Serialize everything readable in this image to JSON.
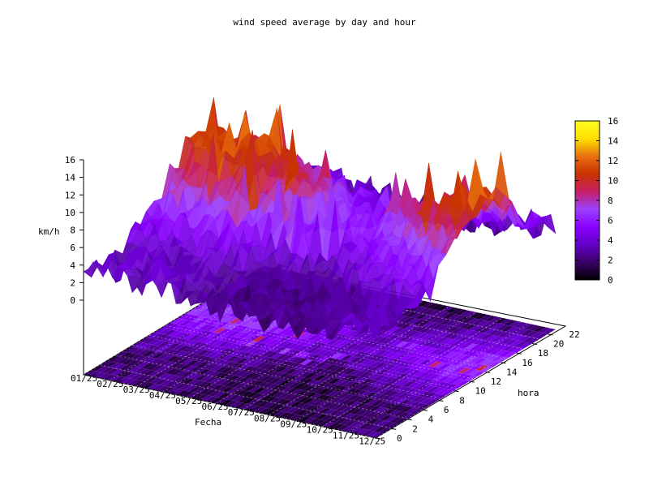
{
  "chart_data": {
    "type": "surface3d",
    "title": "wind speed average by day and hour",
    "xlabel": "Fecha",
    "ylabel": "hora",
    "zlabel": "km/h",
    "x_ticks": [
      "01/25",
      "02/25",
      "03/25",
      "04/25",
      "05/25",
      "06/25",
      "07/25",
      "08/25",
      "09/25",
      "10/25",
      "11/25",
      "12/25"
    ],
    "y_ticks": [
      0,
      2,
      4,
      6,
      8,
      10,
      12,
      14,
      16,
      18,
      20,
      22
    ],
    "z_ticks": [
      0,
      2,
      4,
      6,
      8,
      10,
      12,
      14,
      16
    ],
    "zlim": [
      0,
      16
    ],
    "colorbar": {
      "ticks": [
        0,
        2,
        4,
        6,
        8,
        10,
        12,
        14,
        16
      ],
      "range": [
        0,
        16
      ],
      "palette": [
        "#000000",
        "#3a0068",
        "#6400c8",
        "#8a00ff",
        "#9a40ff",
        "#c81e64",
        "#c83200",
        "#e87010",
        "#ffe000",
        "#ffff20"
      ]
    },
    "hour_profile": [
      3,
      3,
      3,
      3,
      3,
      3,
      4,
      4,
      5,
      6,
      7,
      8,
      9,
      10,
      10,
      10,
      9,
      8,
      7,
      6,
      5,
      4,
      3,
      3
    ],
    "peak_kmh": 15.5,
    "grid": true
  }
}
